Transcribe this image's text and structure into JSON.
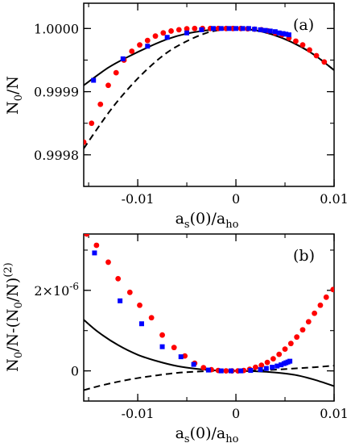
{
  "chart_data": [
    {
      "type": "scatter",
      "panel_label": "(a)",
      "xlabel": "a_s(0)/a_ho",
      "ylabel": "N_0/N",
      "xlim": [
        -0.0155,
        0.01
      ],
      "ylim": [
        0.99975,
        1.00004
      ],
      "xticks": [
        -0.01,
        0,
        0.01
      ],
      "xtick_labels": [
        "-0.01",
        "0",
        "0.01"
      ],
      "yticks": [
        0.9998,
        0.9999,
        1.0
      ],
      "ytick_labels": [
        "0.9998",
        "0.9999",
        "1.0000"
      ],
      "grid": false,
      "colors": {
        "red": "#ff0000",
        "blue": "#0000ff",
        "line": "#000000"
      },
      "series": [
        {
          "marker": "circle",
          "color": "#ff0000",
          "x": [
            -0.0155,
            -0.0147,
            -0.0138,
            -0.013,
            -0.0122,
            -0.0114,
            -0.0106,
            -0.0098,
            -0.009,
            -0.0082,
            -0.0074,
            -0.0066,
            -0.0058,
            -0.005,
            -0.0042,
            -0.0034,
            -0.0026,
            -0.0018,
            -0.001,
            -0.0003,
            0.0005,
            0.0012,
            0.0019,
            0.0026,
            0.0033,
            0.004,
            0.0047,
            0.0054,
            0.0061,
            0.0068,
            0.0075,
            0.0082,
            0.009
          ],
          "y": [
            0.99982,
            0.99985,
            0.99988,
            0.99991,
            0.99993,
            0.99995,
            0.999964,
            0.999974,
            0.999981,
            0.999988,
            0.999993,
            0.999996,
            0.999998,
            0.9999995,
            1.0,
            1.0,
            1.0,
            1.0,
            1.0,
            1.0,
            1.0,
            0.9999995,
            0.999999,
            0.999998,
            0.999996,
            0.999993,
            0.99999,
            0.999985,
            0.99998,
            0.999974,
            0.999966,
            0.999957,
            0.999947
          ]
        },
        {
          "marker": "square",
          "color": "#0000ff",
          "x": [
            -0.0145,
            -0.0115,
            -0.009,
            -0.007,
            -0.005,
            -0.0035,
            -0.0023,
            -0.0015,
            -0.0007,
            0.0,
            0.0007,
            0.0013,
            0.0019,
            0.0025,
            0.003,
            0.0035,
            0.004,
            0.0044,
            0.0048,
            0.0051,
            0.0054
          ],
          "y": [
            0.999918,
            0.999952,
            0.999972,
            0.999986,
            0.999993,
            0.999998,
            1.0,
            1.0,
            1.0,
            1.0,
            1.0,
            1.0,
            0.999999,
            0.999998,
            0.999997,
            0.999996,
            0.999995,
            0.999993,
            0.999992,
            0.999991,
            0.99999
          ]
        }
      ],
      "curves": [
        {
          "style": "solid",
          "x": [
            -0.0155,
            -0.013,
            -0.011,
            -0.009,
            -0.007,
            -0.005,
            -0.003,
            -0.0015,
            0.0,
            0.002,
            0.004,
            0.006,
            0.008,
            0.01
          ],
          "y": [
            0.99991,
            0.999938,
            0.999955,
            0.99997,
            0.999983,
            0.999992,
            0.999997,
            0.999999,
            1.0,
            0.999997,
            0.999989,
            0.999976,
            0.999958,
            0.999934
          ]
        },
        {
          "style": "dashed",
          "x": [
            -0.0155,
            -0.013,
            -0.011,
            -0.009,
            -0.007,
            -0.005,
            -0.003,
            -0.0015,
            0.0,
            0.002,
            0.004,
            0.006,
            0.008,
            0.01
          ],
          "y": [
            0.99981,
            0.999866,
            0.999904,
            0.999936,
            0.999962,
            0.99998,
            0.999993,
            0.999998,
            1.0,
            0.999997,
            0.999989,
            0.999976,
            0.999958,
            0.999934
          ]
        }
      ]
    },
    {
      "type": "scatter",
      "panel_label": "(b)",
      "xlabel": "a_s(0)/a_ho",
      "ylabel": "N_0/N-(N_0/N)^(2)",
      "xlim": [
        -0.0155,
        0.01
      ],
      "ylim": [
        -7.5e-07,
        3.4e-06
      ],
      "xticks": [
        -0.01,
        0,
        0.01
      ],
      "xtick_labels": [
        "-0.01",
        "0",
        "0.01"
      ],
      "yticks": [
        0,
        2e-06
      ],
      "ytick_labels": [
        "0",
        "2×10-6"
      ],
      "grid": false,
      "colors": {
        "red": "#ff0000",
        "blue": "#0000ff",
        "line": "#000000"
      },
      "series": [
        {
          "marker": "circle",
          "color": "#ff0000",
          "x": [
            -0.0152,
            -0.0142,
            -0.013,
            -0.012,
            -0.0108,
            -0.0098,
            -0.0086,
            -0.0075,
            -0.0063,
            -0.0052,
            -0.0042,
            -0.0033,
            -0.0025,
            -0.0018,
            -0.001,
            -0.0004,
            0.0002,
            0.0008,
            0.0014,
            0.002,
            0.0026,
            0.0032,
            0.0038,
            0.0044,
            0.005,
            0.0056,
            0.0062,
            0.0068,
            0.0074,
            0.008,
            0.0086,
            0.0092,
            0.0099
          ],
          "y": [
            3.4e-06,
            3.12e-06,
            2.7e-06,
            2.29e-06,
            1.95e-06,
            1.63e-06,
            1.32e-06,
            8.9e-07,
            5.8e-07,
            3.7e-07,
            1.9e-07,
            8e-08,
            3e-08,
            1e-08,
            0,
            0,
            0,
            1e-08,
            4e-08,
            9e-08,
            1.4e-07,
            2.1e-07,
            3e-07,
            4.1e-07,
            5.4e-07,
            6.8e-07,
            8.4e-07,
            1.02e-06,
            1.22e-06,
            1.43e-06,
            1.63e-06,
            1.83e-06,
            2.02e-06
          ]
        },
        {
          "marker": "square",
          "color": "#0000ff",
          "x": [
            -0.0144,
            -0.0118,
            -0.0096,
            -0.0075,
            -0.0056,
            -0.0043,
            -0.0028,
            -0.0015,
            -0.0005,
            0.0005,
            0.0015,
            0.0025,
            0.0031,
            0.0037,
            0.0042,
            0.0046,
            0.0049,
            0.0051,
            0.0053,
            0.0055
          ],
          "y": [
            2.93e-06,
            1.74e-06,
            1.17e-06,
            6e-07,
            3.5e-07,
            1.6e-07,
            2e-08,
            0,
            0,
            0,
            1e-08,
            3e-08,
            6e-08,
            9e-08,
            1.2e-07,
            1.5e-07,
            1.8e-07,
            2e-07,
            2.2e-07,
            2.4e-07
          ]
        }
      ],
      "curves": [
        {
          "style": "solid",
          "x": [
            -0.0155,
            -0.014,
            -0.012,
            -0.01,
            -0.008,
            -0.006,
            -0.004,
            -0.002,
            0.0,
            0.002,
            0.004,
            0.006,
            0.008,
            0.01
          ],
          "y": [
            1.27e-06,
            9.6e-07,
            6.4e-07,
            4e-07,
            2.4e-07,
            1.2e-07,
            5e-08,
            1e-08,
            0,
            -1e-08,
            -4e-08,
            -1e-07,
            -2.2e-07,
            -3.8e-07
          ]
        },
        {
          "style": "dashed",
          "x": [
            -0.0155,
            -0.014,
            -0.012,
            -0.01,
            -0.008,
            -0.006,
            -0.004,
            -0.002,
            0.0,
            0.002,
            0.004,
            0.006,
            0.008,
            0.01
          ],
          "y": [
            -4.8e-07,
            -3.8e-07,
            -2.7e-07,
            -1.8e-07,
            -1.1e-07,
            -5e-08,
            -2e-08,
            0,
            0,
            1e-08,
            3e-08,
            6e-08,
            9e-08,
            1.3e-07
          ]
        }
      ]
    }
  ]
}
